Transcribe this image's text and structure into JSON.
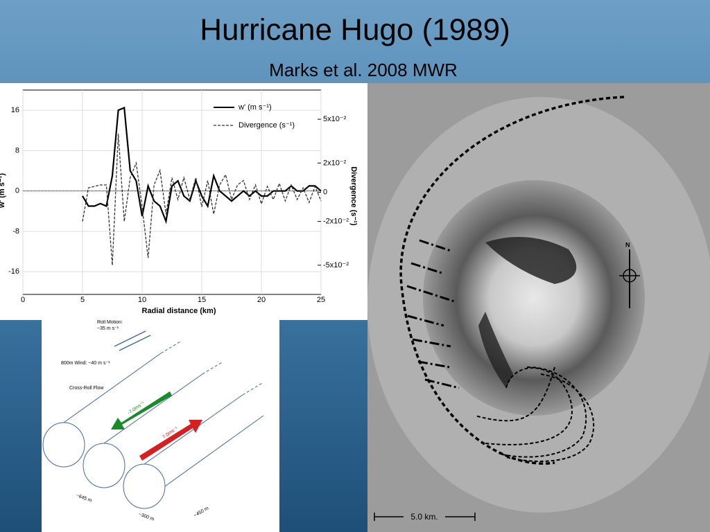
{
  "slide": {
    "title": "Hurricane Hugo (1989)",
    "subtitle": "Marks et al. 2008 MWR"
  },
  "chart_data": {
    "type": "line",
    "x_label": "Radial distance (km)",
    "y_label": "w' (m s⁻¹)",
    "y2_label": "Divergence (s⁻¹)",
    "xlim": [
      0,
      25
    ],
    "xticks": [
      0,
      5,
      10,
      15,
      20,
      25
    ],
    "ylim": [
      -20.5,
      20
    ],
    "yticks": [
      -16,
      -8,
      0,
      8,
      16
    ],
    "y2lim": [
      -0.07,
      0.07
    ],
    "y2ticks": [
      {
        "value": -0.05,
        "label": "-5x10⁻²"
      },
      {
        "value": -0.02,
        "label": "-2x10⁻²"
      },
      0,
      {
        "value": 0.02,
        "label": "2x10⁻²"
      },
      {
        "value": 0.05,
        "label": "5x10⁻²"
      }
    ],
    "grid": true,
    "legend": "upper right",
    "x": [
      5,
      5.5,
      6,
      6.5,
      7,
      7.5,
      8,
      8.5,
      9,
      9.5,
      10,
      10.5,
      11,
      11.5,
      12,
      12.5,
      13,
      13.5,
      14,
      14.5,
      15,
      15.5,
      16,
      16.5,
      17,
      17.5,
      18,
      18.5,
      19,
      19.5,
      20,
      20.5,
      21,
      21.5,
      22,
      22.5,
      23,
      23.5,
      24,
      24.5,
      25
    ],
    "series": [
      {
        "name": "w' (m s⁻¹)",
        "color": "#000000",
        "dash": "solid",
        "values": [
          -1,
          -3,
          -3,
          -2.5,
          -3,
          3,
          16,
          16.5,
          4,
          2,
          -5,
          1,
          -2,
          -3,
          -6,
          1,
          2,
          -1,
          -2,
          2,
          -1,
          -3,
          3,
          0,
          -1,
          -2,
          -1,
          0,
          -1,
          0,
          -1,
          -1,
          0,
          0,
          0,
          1,
          0,
          0,
          1,
          1,
          0
        ]
      },
      {
        "name": "Divergence (s⁻¹)",
        "color": "#333333",
        "dash": "dashed",
        "axis": "y2",
        "values": [
          -0.02,
          0.003,
          0.004,
          0.005,
          0.005,
          -0.05,
          0.04,
          -0.02,
          0.01,
          0.02,
          -0.01,
          -0.045,
          0.005,
          0.015,
          -0.015,
          0.01,
          -0.005,
          0.01,
          -0.005,
          0.01,
          -0.01,
          0.008,
          -0.015,
          0.005,
          0.012,
          -0.005,
          0.005,
          0.008,
          -0.005,
          0.005,
          -0.008,
          0.004,
          -0.005,
          0.006,
          -0.006,
          0.005,
          -0.005,
          0.003,
          -0.007,
          0.004,
          -0.006
        ]
      }
    ]
  },
  "diagram": {
    "roll_motion": "Roll Motion:",
    "roll_speed": "~35 m s⁻¹",
    "wind": "800m Wind: ~40 m s⁻¹",
    "cross_roll": "Cross-Roll Flow",
    "green_arrow": "-7.0ms⁻¹",
    "red_arrow": "7.0ms⁻¹",
    "spacing": "~645 m",
    "depth": "~300 m",
    "width": "~450 m"
  },
  "photo": {
    "north": "N",
    "scale": "5.0  km."
  }
}
